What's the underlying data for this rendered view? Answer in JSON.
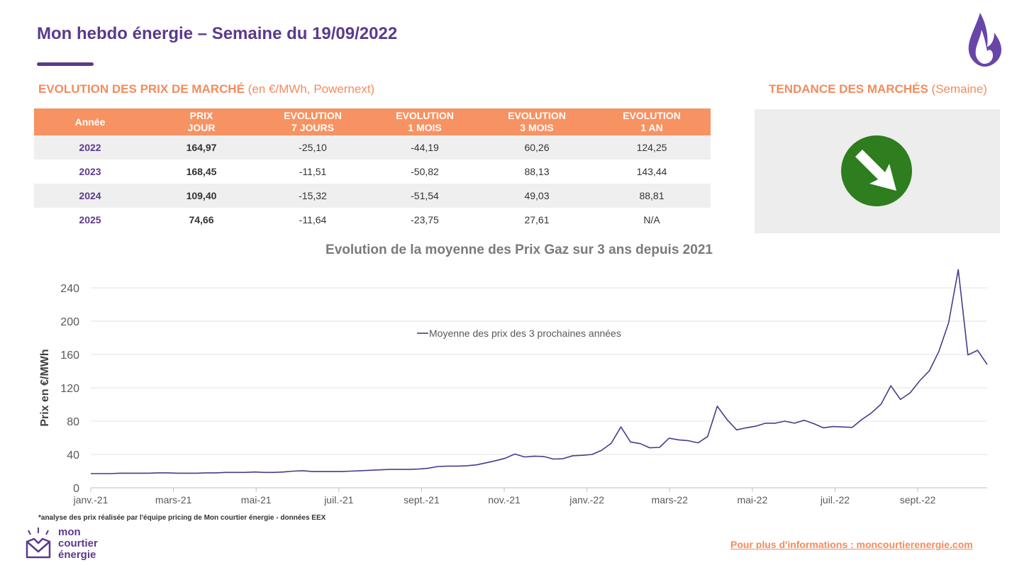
{
  "header": {
    "title": "Mon hebdo énergie – Semaine du 19/09/2022"
  },
  "prices_section": {
    "title_bold": "EVOLUTION DES PRIX DE MARCHÉ",
    "title_rest": "(en €/MWh, Powernext)"
  },
  "trend_section": {
    "title_bold": "TENDANCE DES MARCHÉS",
    "title_rest": "(Semaine)",
    "trend": "down-right-arrow-icon",
    "trend_color": "#2E7D1E"
  },
  "table": {
    "headers": [
      {
        "l1": "Année",
        "l2": ""
      },
      {
        "l1": "PRIX",
        "l2": "JOUR"
      },
      {
        "l1": "EVOLUTION",
        "l2": "7 JOURS"
      },
      {
        "l1": "EVOLUTION",
        "l2": "1 MOIS"
      },
      {
        "l1": "EVOLUTION",
        "l2": "3 MOIS"
      },
      {
        "l1": "EVOLUTION",
        "l2": "1 AN"
      }
    ],
    "rows": [
      [
        "2022",
        "164,97",
        "-25,10",
        "-44,19",
        "60,26",
        "124,25"
      ],
      [
        "2023",
        "168,45",
        "-11,51",
        "-50,82",
        "88,13",
        "143,44"
      ],
      [
        "2024",
        "109,40",
        "-15,32",
        "-51,54",
        "49,03",
        "88,81"
      ],
      [
        "2025",
        "74,66",
        "-11,64",
        "-23,75",
        "27,61",
        "N/A"
      ]
    ]
  },
  "chart_data": {
    "type": "line",
    "title": "Evolution de la moyenne des Prix Gaz sur 3 ans depuis 2021",
    "ylabel": "Prix en €/MWh",
    "ylim": [
      0,
      240
    ],
    "yticks": [
      "0",
      "40",
      "80",
      "120",
      "160",
      "200",
      "240"
    ],
    "xticks": [
      "janv.-21",
      "mars-21",
      "mai-21",
      "juil.-21",
      "sept.-21",
      "nov.-21",
      "janv.-22",
      "mars-22",
      "mai-22",
      "juil.-22",
      "sept.-22"
    ],
    "grid": true,
    "legend_position": "top-center",
    "color": "#4B3A8A",
    "series": [
      {
        "name": "Moyenne des prix des 3 prochaines années",
        "values": [
          17,
          17,
          17,
          17.5,
          17.5,
          17.5,
          17.5,
          18,
          18,
          17.5,
          17.5,
          17.5,
          18,
          18,
          18.5,
          18.5,
          18.5,
          19,
          18.5,
          18.5,
          19,
          20,
          20.5,
          19.5,
          19.5,
          19.5,
          19.5,
          20,
          20.5,
          21,
          21.5,
          22,
          22,
          22,
          22.5,
          23.5,
          25.5,
          26,
          26,
          26.5,
          27.5,
          30,
          32.5,
          35.5,
          40.5,
          37,
          38,
          37.5,
          34.5,
          35,
          38.5,
          39,
          40,
          45,
          53.5,
          73,
          55,
          53,
          48,
          48.5,
          59.5,
          57.5,
          56.5,
          54,
          61.5,
          98,
          82,
          69.5,
          72,
          74,
          77.5,
          77.5,
          80,
          77.5,
          81,
          77,
          72,
          73.5,
          73,
          72.5,
          82,
          90,
          100.5,
          122.5,
          106,
          114,
          128.5,
          140.5,
          164,
          198,
          262,
          159.5,
          165,
          148
        ]
      }
    ]
  },
  "footer": {
    "footnote": "*analyse des prix réalisée par l'équipe pricing de Mon courtier énergie -  données EEX",
    "brand": [
      "mon",
      "courtier",
      "énergie"
    ],
    "link": "Pour plus d'informations : moncourtierenergie.com"
  }
}
